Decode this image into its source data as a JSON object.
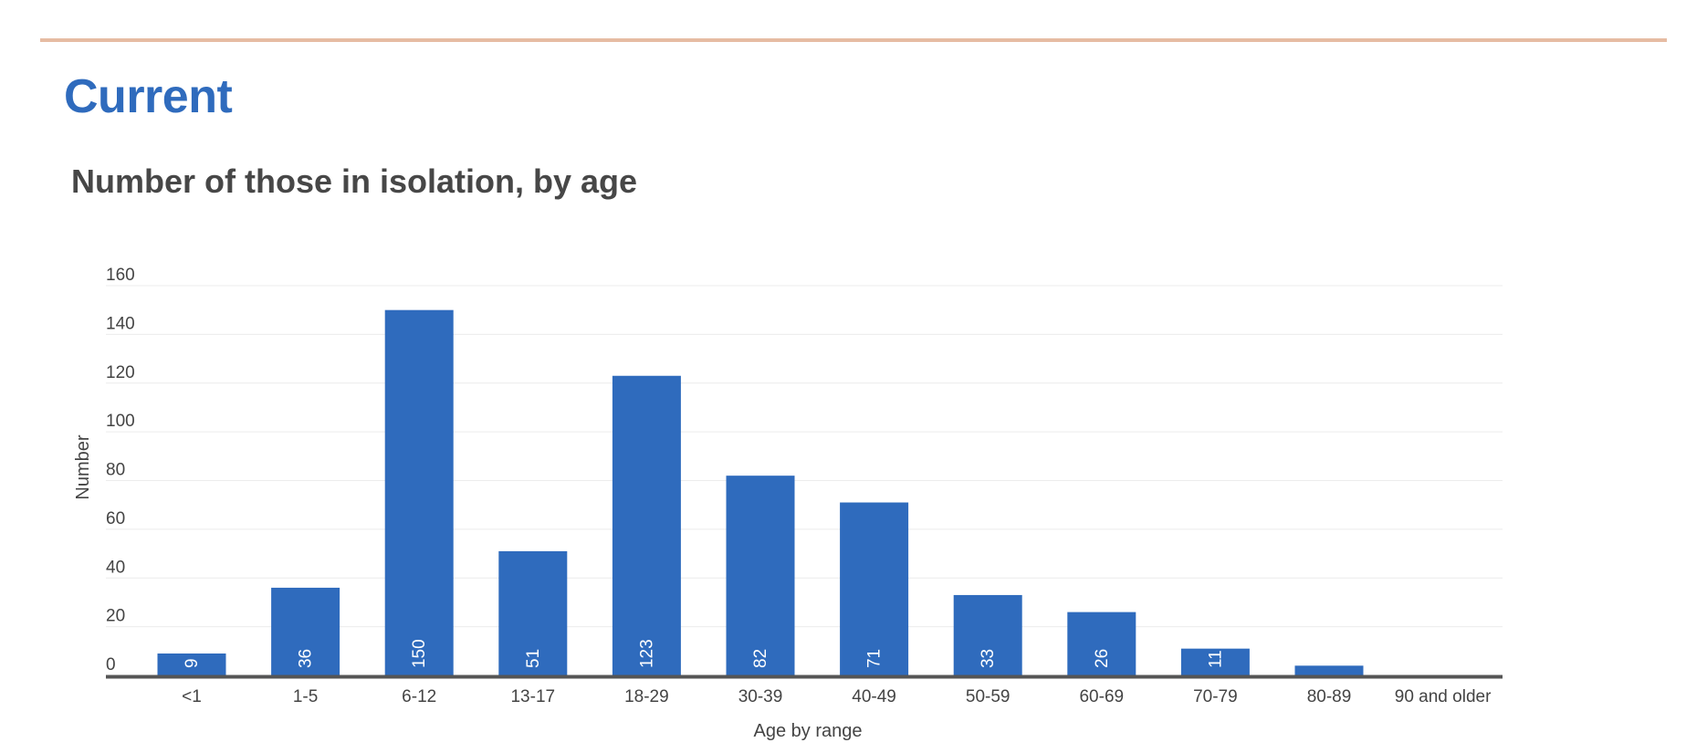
{
  "page": {
    "section_title": "Current"
  },
  "colors": {
    "bar": "#2f6bbd",
    "rule": "#e6bca3",
    "title": "#2f6bbd",
    "grid": "#ececec",
    "axis": "#555555"
  },
  "chart_data": {
    "type": "bar",
    "title": "Number of those in isolation, by age",
    "xlabel": "Age by range",
    "ylabel": "Number",
    "categories": [
      "<1",
      "1-5",
      "6-12",
      "13-17",
      "18-29",
      "30-39",
      "40-49",
      "50-59",
      "60-69",
      "70-79",
      "80-89",
      "90 and older"
    ],
    "values": [
      9,
      36,
      150,
      51,
      123,
      82,
      71,
      33,
      26,
      11,
      4,
      0
    ],
    "data_labels": [
      "9",
      "36",
      "150",
      "51",
      "123",
      "82",
      "71",
      "33",
      "26",
      "11",
      "",
      ""
    ],
    "ylim": [
      0,
      160
    ],
    "yticks": [
      0,
      20,
      40,
      60,
      80,
      100,
      120,
      140,
      160
    ],
    "grid": true,
    "legend": "none"
  }
}
